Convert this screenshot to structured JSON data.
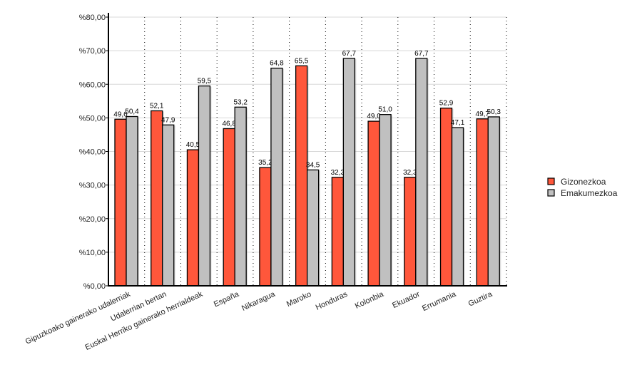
{
  "chart_data": {
    "type": "bar",
    "title": "",
    "xlabel": "",
    "ylabel": "",
    "ylim": [
      0,
      80
    ],
    "yticks": [
      "%0,00",
      "%10,00",
      "%20,00",
      "%30,00",
      "%40,00",
      "%50,00",
      "%60,00",
      "%70,00",
      "%80,00"
    ],
    "grid": true,
    "legend_position": "right",
    "categories": [
      "Gipuzkoako gainerako udalerriak",
      "Udalerrian bertan",
      "Euskal Herriko gainerako herrialdeak",
      "España",
      "Nikaragua",
      "Maroko",
      "Honduras",
      "Kolonbia",
      "Ekuador",
      "Errumania",
      "Guztira"
    ],
    "series": [
      {
        "name": "Gizonezkoa",
        "color": "#ff573b",
        "values": [
          49.6,
          52.1,
          40.5,
          46.8,
          35.2,
          65.5,
          32.3,
          49.0,
          32.3,
          52.9,
          49.7
        ],
        "labels": [
          "49,6",
          "52,1",
          "40,5",
          "46,8",
          "35,2",
          "65,5",
          "32,3",
          "49,0",
          "32,3",
          "52,9",
          "49,7"
        ]
      },
      {
        "name": "Emakumezkoa",
        "color": "#c0c0c0",
        "values": [
          50.4,
          47.9,
          59.5,
          53.2,
          64.8,
          34.5,
          67.7,
          51.0,
          67.7,
          47.1,
          50.3
        ],
        "labels": [
          "50,4",
          "47,9",
          "59,5",
          "53,2",
          "64,8",
          "34,5",
          "67,7",
          "51,0",
          "67,7",
          "47,1",
          "50,3"
        ]
      }
    ]
  }
}
